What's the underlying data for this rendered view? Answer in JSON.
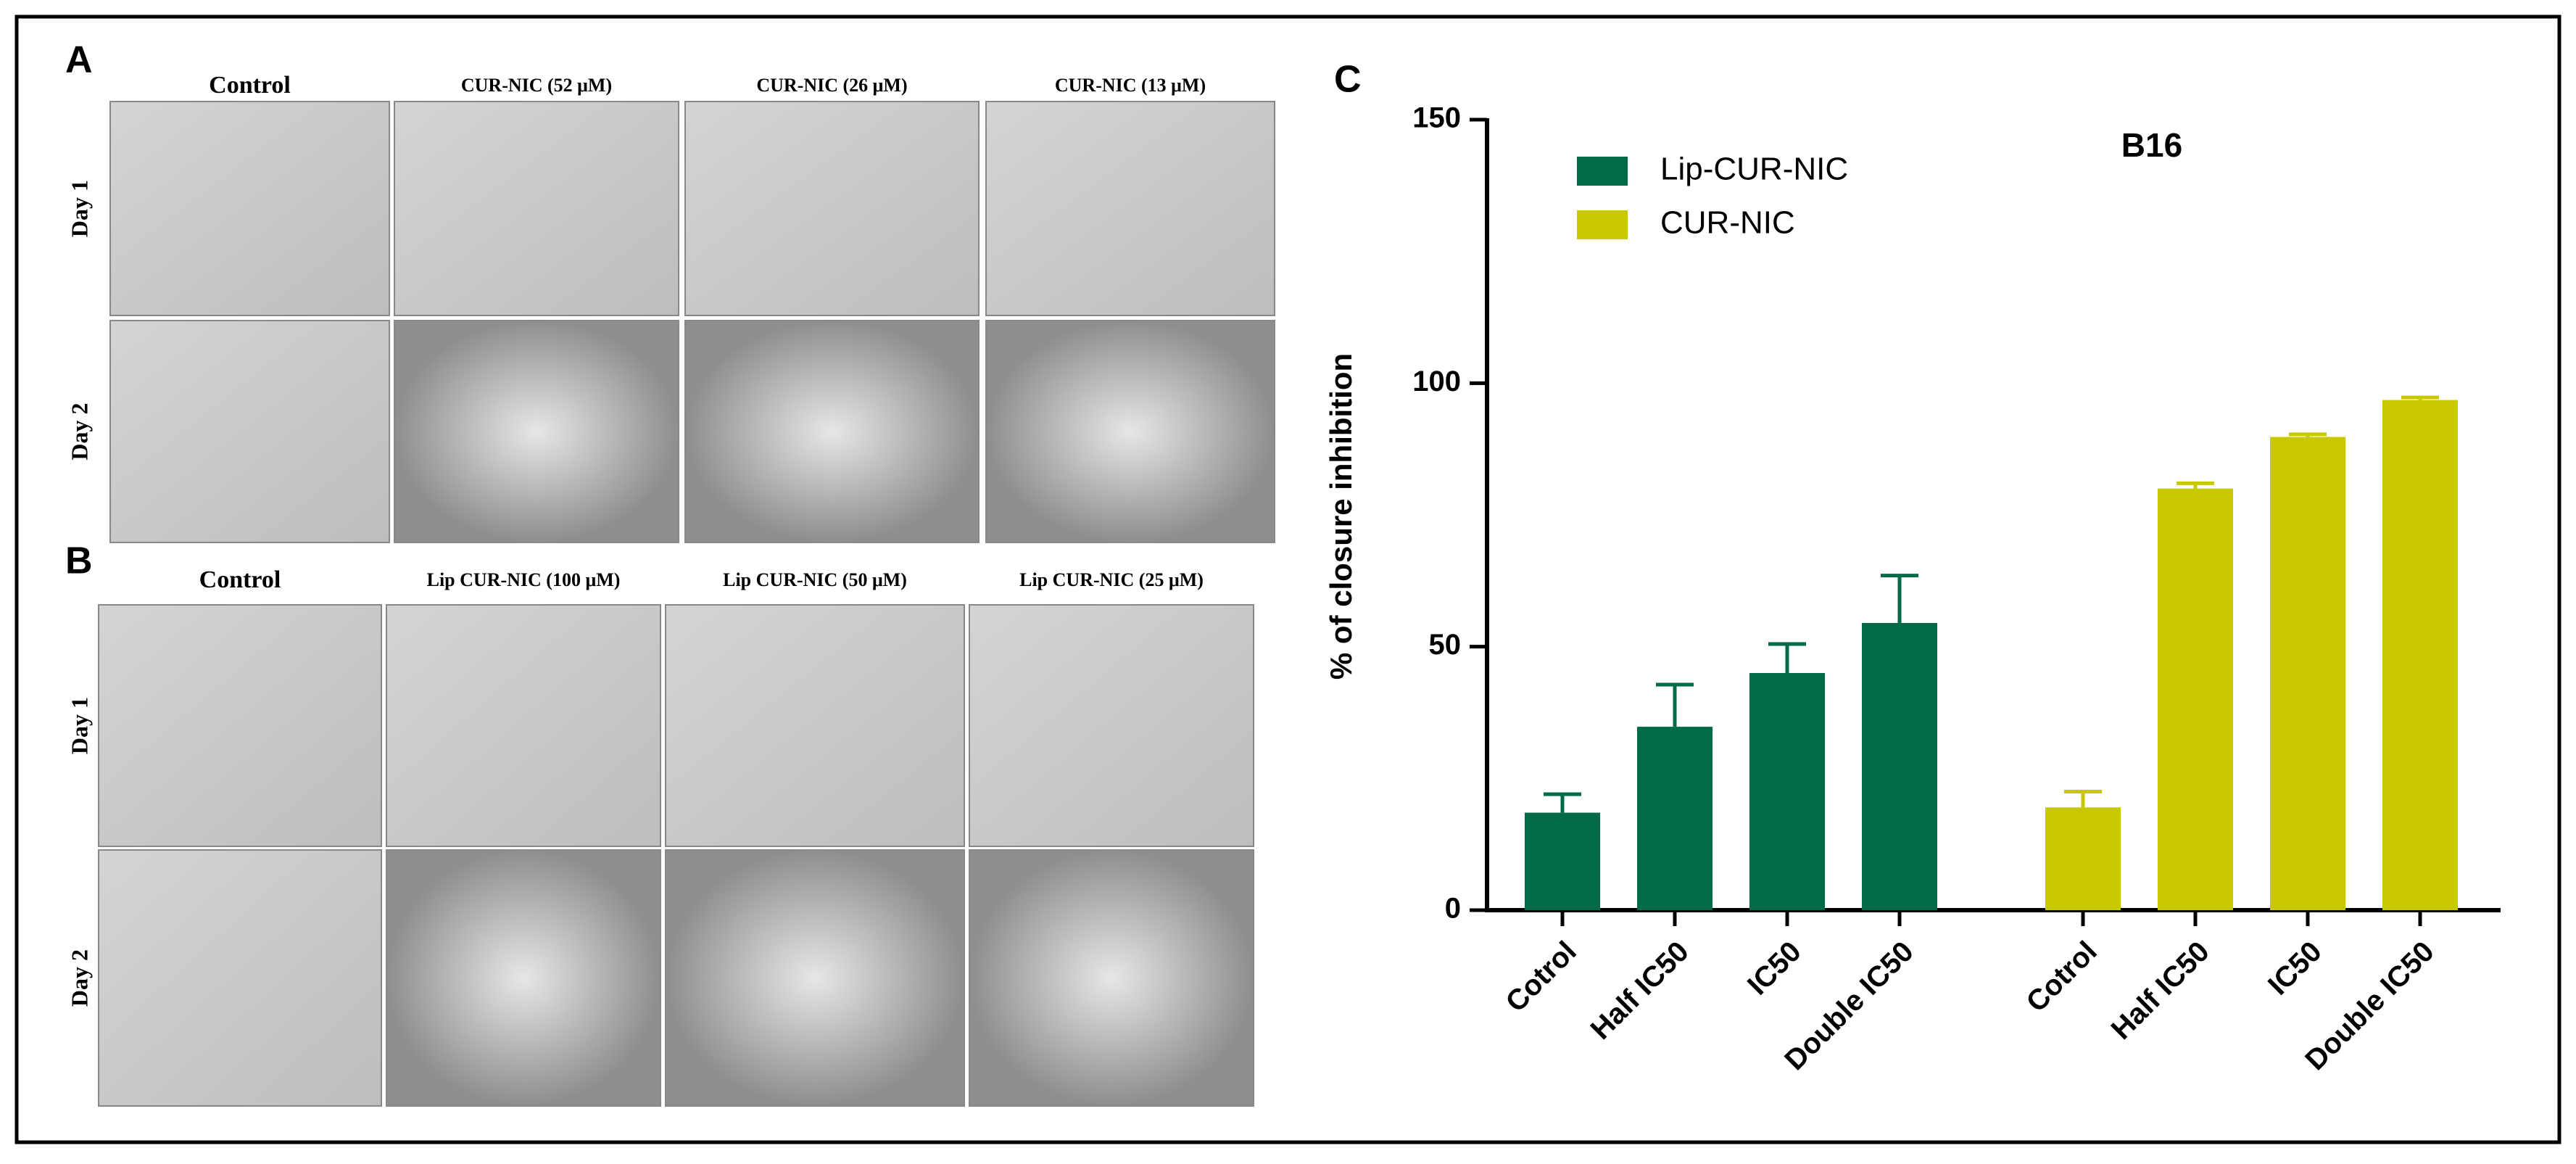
{
  "panels": [
    {
      "label": "A",
      "columns": [
        "Control",
        "CUR-NIC (52 μM)",
        "CUR-NIC (26 μM)",
        "CUR-NIC (13 μM)"
      ],
      "rows": [
        "Day 1",
        "Day 2"
      ]
    },
    {
      "label": "B",
      "columns": [
        "Control",
        "Lip CUR-NIC (100 μM)",
        "Lip CUR-NIC (50 μM)",
        "Lip CUR-NIC (25 μM)"
      ],
      "rows": [
        "Day 1",
        "Day 2"
      ]
    }
  ],
  "chart_label": "C",
  "chart_data": {
    "type": "bar",
    "title": "B16",
    "y_label": "% of closure inhibition",
    "categories": [
      "Cotrol",
      "Half IC50",
      "IC50",
      "Double IC50",
      "Cotrol",
      "Half IC50",
      "IC50",
      "Double IC50"
    ],
    "series": [
      {
        "name": "Lip-CUR-NIC",
        "color": "#006b45",
        "values": [
          18.5,
          34.8,
          45,
          54.5,
          null,
          null,
          null,
          null
        ],
        "errors": [
          3.5,
          8,
          5.5,
          9,
          null,
          null,
          null,
          null
        ]
      },
      {
        "name": "CUR-NIC",
        "color": "#c8c800",
        "values": [
          null,
          null,
          null,
          null,
          19.5,
          80,
          89.8,
          96.8
        ],
        "errors": [
          null,
          null,
          null,
          null,
          3,
          1,
          0.5,
          0.5
        ]
      }
    ],
    "ylim": [
      0,
      150
    ],
    "yticks": [
      0,
      50,
      100,
      150
    ],
    "grid": false,
    "legend": "top-left"
  }
}
